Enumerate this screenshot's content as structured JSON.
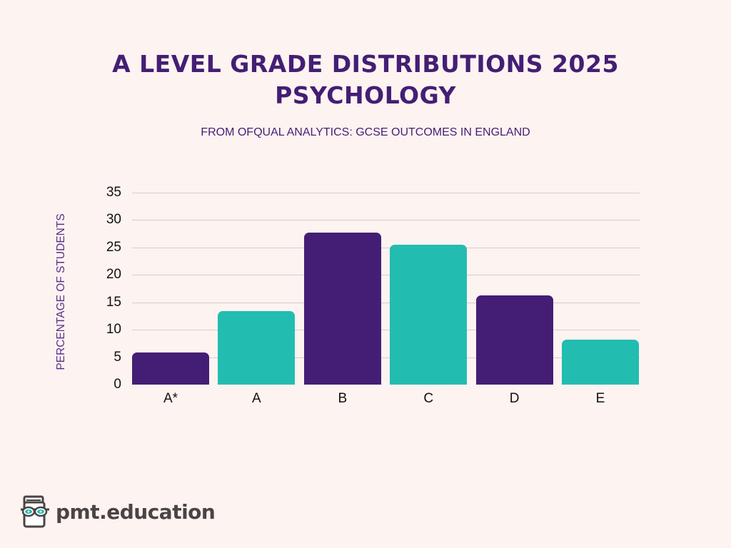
{
  "header": {
    "title_line1": "A LEVEL GRADE DISTRIBUTIONS 2025",
    "title_line2": "PSYCHOLOGY",
    "subtitle": "FROM OFQUAL ANALYTICS: GCSE OUTCOMES IN ENGLAND"
  },
  "axis": {
    "ylabel": "PERCENTAGE OF STUDENTS",
    "yticks": [
      "0",
      "5",
      "10",
      "15",
      "20",
      "25",
      "30",
      "35"
    ]
  },
  "colors": {
    "background": "#fdf3f1",
    "primary": "#441e74",
    "secondary": "#22bdb0",
    "grid": "#d6cccc"
  },
  "logo": {
    "text": "pmt.education",
    "icon": "book-with-glasses-icon"
  },
  "chart_data": {
    "type": "bar",
    "title": "A LEVEL GRADE DISTRIBUTIONS 2025 PSYCHOLOGY",
    "subtitle": "FROM OFQUAL ANALYTICS: GCSE OUTCOMES IN ENGLAND",
    "xlabel": "",
    "ylabel": "PERCENTAGE OF STUDENTS",
    "categories": [
      "A*",
      "A",
      "B",
      "C",
      "D",
      "E"
    ],
    "values": [
      5.8,
      13.4,
      27.6,
      25.4,
      16.2,
      8.2
    ],
    "bar_colors": [
      "#441e74",
      "#22bdb0",
      "#441e74",
      "#22bdb0",
      "#441e74",
      "#22bdb0"
    ],
    "ylim": [
      0,
      35
    ],
    "yticks": [
      0,
      5,
      10,
      15,
      20,
      25,
      30,
      35
    ],
    "grid": true,
    "legend": null
  }
}
